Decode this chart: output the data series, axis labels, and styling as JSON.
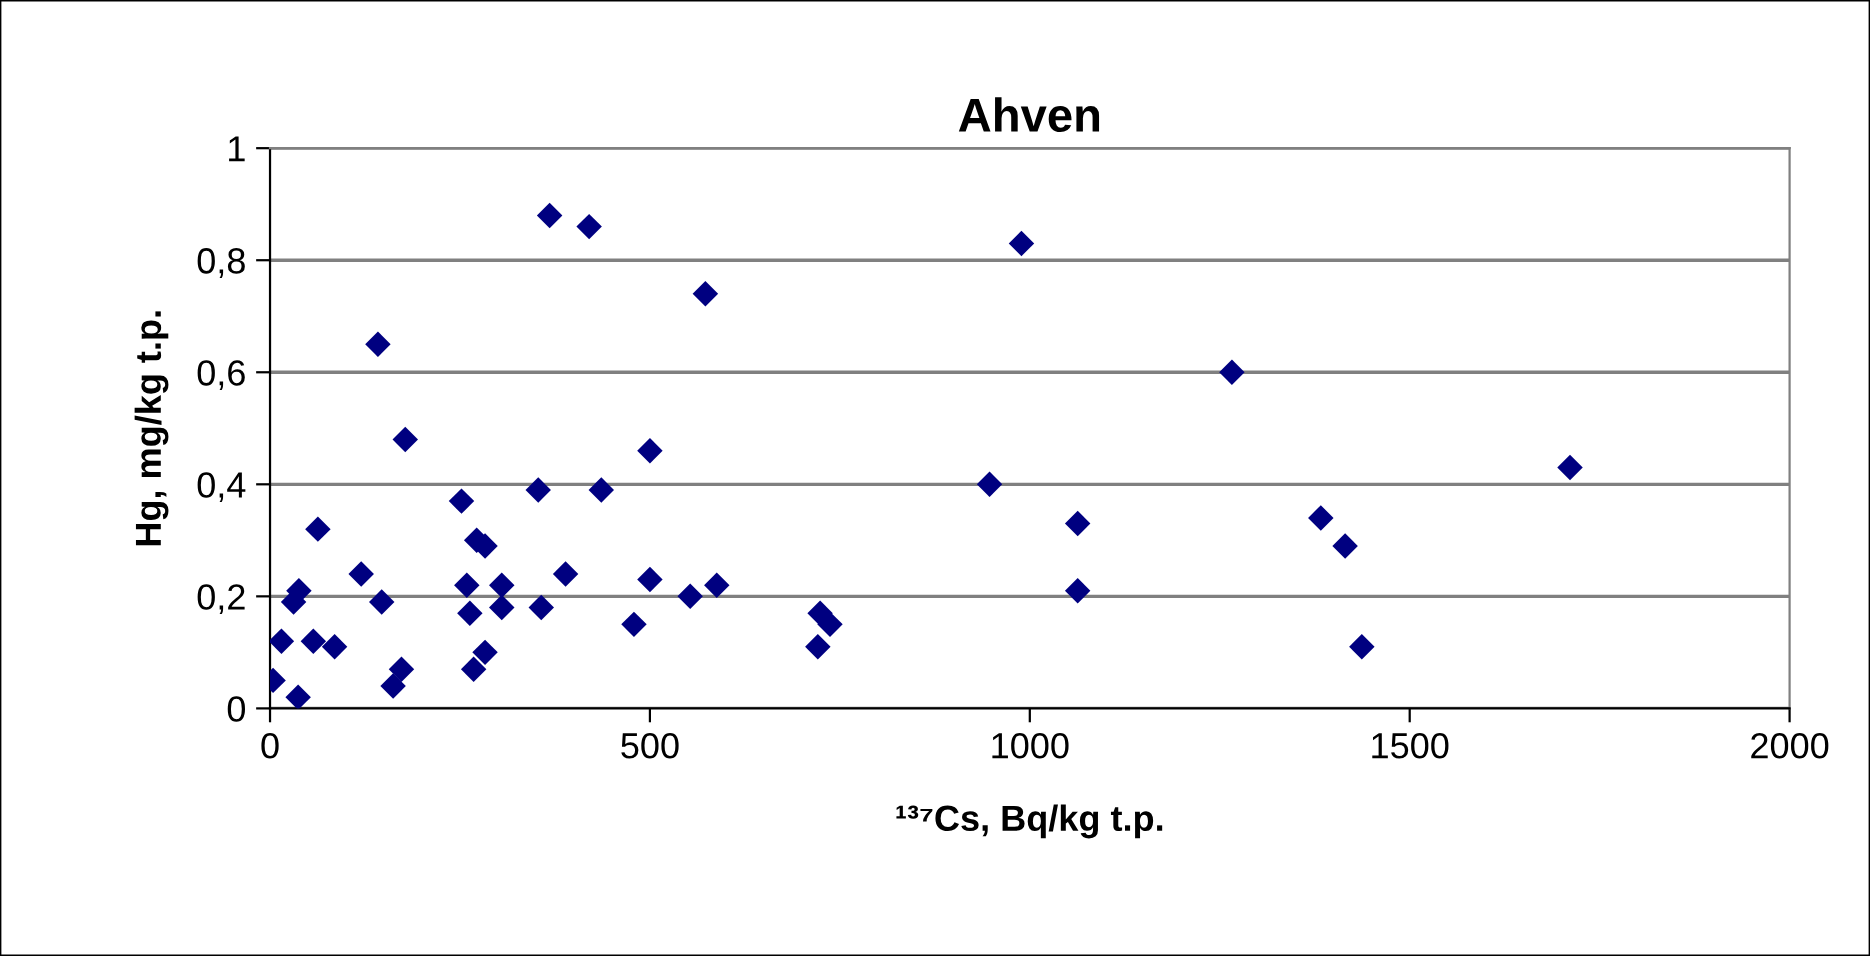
{
  "chart_data": {
    "type": "scatter",
    "title": "Ahven",
    "xlabel": "¹³⁷Cs, Bq/kg t.p.",
    "ylabel": "Hg, mg/kg t.p.",
    "series": [
      {
        "color": "#000080",
        "x": [
          4,
          15,
          37,
          31,
          38,
          63,
          57,
          85,
          120,
          142,
          147,
          178,
          162,
          173,
          252,
          259,
          263,
          268,
          272,
          283,
          283,
          305,
          305,
          353,
          357,
          368,
          389,
          420,
          436,
          479,
          500,
          500,
          553,
          573,
          588,
          989,
          1266,
          947,
          1063,
          1063,
          724,
          737,
          721,
          1383,
          1415,
          1437,
          1711
        ],
        "values": [
          0.05,
          0.12,
          0.02,
          0.19,
          0.21,
          0.32,
          0.12,
          0.11,
          0.24,
          0.65,
          0.19,
          0.48,
          0.04,
          0.07,
          0.37,
          0.22,
          0.17,
          0.07,
          0.3,
          0.29,
          0.1,
          0.22,
          0.18,
          0.39,
          0.18,
          0.88,
          0.24,
          0.86,
          0.39,
          0.15,
          0.46,
          0.23,
          0.2,
          0.74,
          0.22,
          0.83,
          0.6,
          0.4,
          0.33,
          0.21,
          0.17,
          0.15,
          0.11,
          0.34,
          0.29,
          0.11,
          0.43
        ]
      }
    ],
    "marker": "diamond",
    "grid": "y",
    "legend": false,
    "xlim": [
      0,
      2000
    ],
    "xticks": [
      0,
      500,
      1000,
      1500,
      2000
    ],
    "ylim": [
      0,
      1
    ],
    "yticks": [
      {
        "value": 0,
        "label": "0"
      },
      {
        "value": 0.2,
        "label": "0,2"
      },
      {
        "value": 0.4,
        "label": "0,4"
      },
      {
        "value": 0.6,
        "label": "0,6"
      },
      {
        "value": 0.8,
        "label": "0,8"
      },
      {
        "value": 1,
        "label": "1"
      }
    ]
  }
}
